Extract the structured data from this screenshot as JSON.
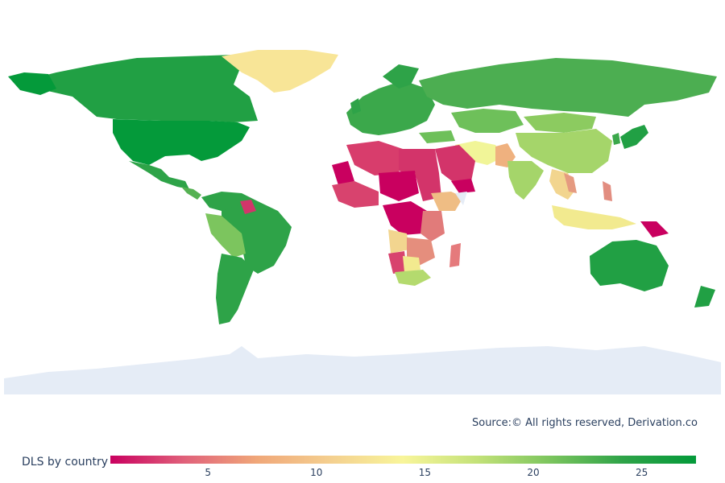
{
  "map": {
    "type": "choropleth",
    "projection": "natural-earth-style world map",
    "colorscale": [
      "#c9005f",
      "#e0607a",
      "#f0a779",
      "#f4cf8f",
      "#f8f59a",
      "#c4e279",
      "#7cc55e",
      "#2ea348",
      "#049a3a"
    ],
    "missing_color": "#e5ecf6",
    "countries": [
      {
        "name": "Canada",
        "value": 26.5
      },
      {
        "name": "United States",
        "value": 27
      },
      {
        "name": "Greenland",
        "value": 12
      },
      {
        "name": "Mexico",
        "value": 24
      },
      {
        "name": "Brazil",
        "value": 24
      },
      {
        "name": "Argentina",
        "value": 24
      },
      {
        "name": "Bolivia",
        "value": 22
      },
      {
        "name": "Guyana/Suriname",
        "value": 3
      },
      {
        "name": "Russia",
        "value": 25
      },
      {
        "name": "Europe",
        "value": 25
      },
      {
        "name": "China",
        "value": 21
      },
      {
        "name": "Mongolia",
        "value": 20
      },
      {
        "name": "India",
        "value": 19
      },
      {
        "name": "Iran/Afghanistan",
        "value": 14
      },
      {
        "name": "Pakistan",
        "value": 10
      },
      {
        "name": "Saudi Arabia",
        "value": 3
      },
      {
        "name": "Yemen",
        "value": 1
      },
      {
        "name": "Japan",
        "value": 26
      },
      {
        "name": "Indonesia",
        "value": 14
      },
      {
        "name": "Papua New Guinea",
        "value": 2
      },
      {
        "name": "Australia",
        "value": 26
      },
      {
        "name": "New Zealand",
        "value": 26
      },
      {
        "name": "Mauritania",
        "value": 1
      },
      {
        "name": "Algeria/Libya",
        "value": 3
      },
      {
        "name": "Nigeria/Chad",
        "value": 2
      },
      {
        "name": "Sudan",
        "value": 3
      },
      {
        "name": "DR Congo",
        "value": 2
      },
      {
        "name": "Ethiopia",
        "value": 11
      },
      {
        "name": "Angola",
        "value": 11
      },
      {
        "name": "Tanzania/Mozambique",
        "value": 8
      },
      {
        "name": "Madagascar",
        "value": 7
      },
      {
        "name": "South Africa",
        "value": 18
      },
      {
        "name": "Antarctica",
        "value": null
      }
    ]
  },
  "source_text": "Source:© All rights reserved, Derivation.co",
  "legend": {
    "title": "DLS by country",
    "ticks": [
      "5",
      "10",
      "15",
      "20",
      "25"
    ],
    "range": [
      0.5,
      27.5
    ]
  }
}
